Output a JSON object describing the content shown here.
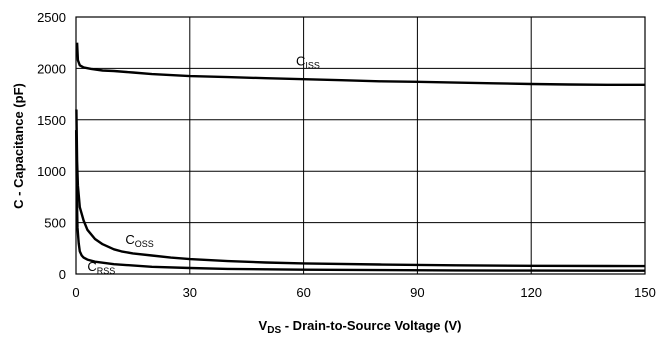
{
  "chart_data": {
    "type": "line",
    "title": "",
    "xlabel": {
      "symbol": "V",
      "subscript": "DS",
      "rest": " - Drain-to-Source Voltage (V)"
    },
    "ylabel": "C - Capacitance (pF)",
    "xlim": [
      0,
      150
    ],
    "ylim": [
      0,
      2500
    ],
    "xticks": [
      0,
      30,
      60,
      90,
      120,
      150
    ],
    "yticks": [
      0,
      500,
      1000,
      1500,
      2000,
      2500
    ],
    "grid": true,
    "legend": "none",
    "series": [
      {
        "name": "C_ISS",
        "label": {
          "main": "C",
          "sub": "ISS"
        },
        "x": [
          0.3,
          0.5,
          1,
          2,
          4,
          7,
          10,
          15,
          20,
          30,
          40,
          50,
          60,
          70,
          80,
          90,
          100,
          110,
          120,
          130,
          140,
          150
        ],
        "values": [
          2250,
          2080,
          2030,
          2010,
          1995,
          1980,
          1975,
          1960,
          1945,
          1925,
          1915,
          1905,
          1895,
          1885,
          1875,
          1870,
          1862,
          1855,
          1848,
          1843,
          1840,
          1840
        ]
      },
      {
        "name": "C_OSS",
        "label": {
          "main": "C",
          "sub": "OSS"
        },
        "x": [
          0.1,
          0.3,
          0.5,
          1,
          2,
          3,
          5,
          7,
          10,
          12,
          15,
          20,
          25,
          30,
          40,
          50,
          60,
          80,
          100,
          120,
          140,
          150
        ],
        "values": [
          1600,
          1100,
          860,
          650,
          520,
          430,
          340,
          290,
          240,
          220,
          200,
          180,
          160,
          145,
          125,
          112,
          103,
          92,
          85,
          80,
          78,
          77
        ]
      },
      {
        "name": "C_RSS",
        "label": {
          "main": "C",
          "sub": "RSS"
        },
        "x": [
          0.05,
          0.2,
          0.4,
          0.7,
          1,
          1.5,
          2,
          3,
          5,
          10,
          20,
          30,
          40,
          60,
          80,
          100,
          120,
          140,
          150
        ],
        "values": [
          1400,
          800,
          450,
          300,
          220,
          180,
          160,
          140,
          120,
          95,
          70,
          58,
          50,
          42,
          38,
          35,
          33,
          32,
          32
        ]
      }
    ]
  },
  "colors": {
    "line": "#000000",
    "grid": "#000000",
    "background": "#ffffff"
  }
}
